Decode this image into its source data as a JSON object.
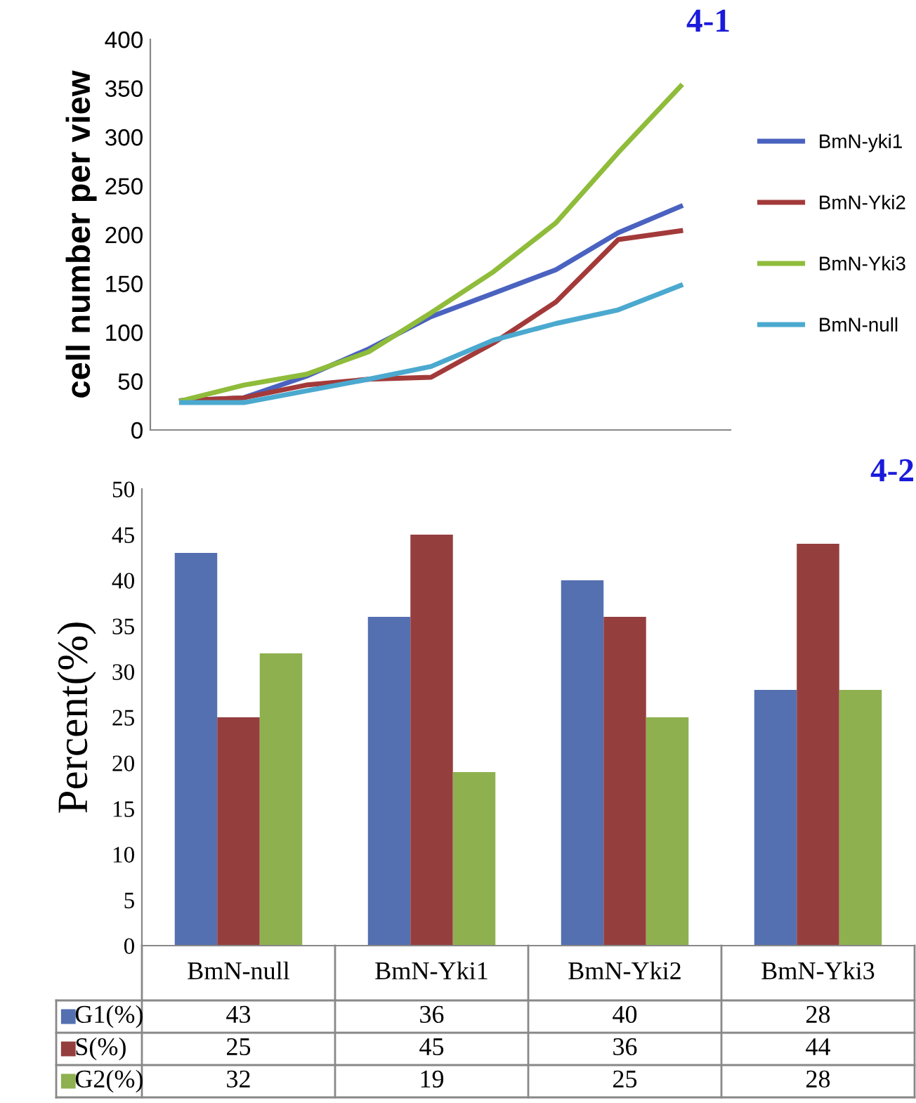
{
  "chart_data": [
    {
      "type": "line",
      "title": "4-1",
      "ylabel": "cell number per view",
      "categories": [
        null,
        null,
        null,
        null,
        null,
        null,
        null,
        null,
        null
      ],
      "ylim": [
        0,
        400
      ],
      "yticks": [
        0,
        50,
        100,
        150,
        200,
        250,
        300,
        350,
        400
      ],
      "legend": "right",
      "grid": false,
      "series": [
        {
          "name": "BmN-yki1",
          "color": "#4a62c0",
          "values": [
            30,
            33,
            55,
            83,
            116,
            140,
            164,
            202,
            229
          ]
        },
        {
          "name": "BmN-Yki2",
          "color": "#a33a3a",
          "values": [
            30,
            33,
            46,
            52,
            54,
            89,
            131,
            195,
            204
          ]
        },
        {
          "name": "BmN-Yki3",
          "color": "#8fbc3a",
          "values": [
            30,
            46,
            57,
            80,
            120,
            162,
            212,
            284,
            352
          ]
        },
        {
          "name": "BmN-null",
          "color": "#4ba9cf",
          "values": [
            28,
            28,
            40,
            52,
            65,
            92,
            109,
            123,
            148
          ]
        }
      ]
    },
    {
      "type": "bar",
      "title": "4-2",
      "ylabel": "Percent(%)",
      "categories": [
        "BmN-null",
        "BmN-Yki1",
        "BmN-Yki2",
        "BmN-Yki3"
      ],
      "ylim": [
        0,
        50
      ],
      "yticks": [
        0,
        5,
        10,
        15,
        20,
        25,
        30,
        35,
        40,
        45,
        50
      ],
      "legend": "bottom",
      "data_labels": true,
      "grid": false,
      "series": [
        {
          "name": "G1(%)",
          "color": "#5470b0",
          "values": [
            43,
            36,
            40,
            28
          ]
        },
        {
          "name": "S(%)",
          "color": "#953e3e",
          "values": [
            25,
            45,
            36,
            44
          ]
        },
        {
          "name": "G2(%)",
          "color": "#8fb04f",
          "values": [
            32,
            19,
            25,
            28
          ]
        }
      ]
    }
  ]
}
